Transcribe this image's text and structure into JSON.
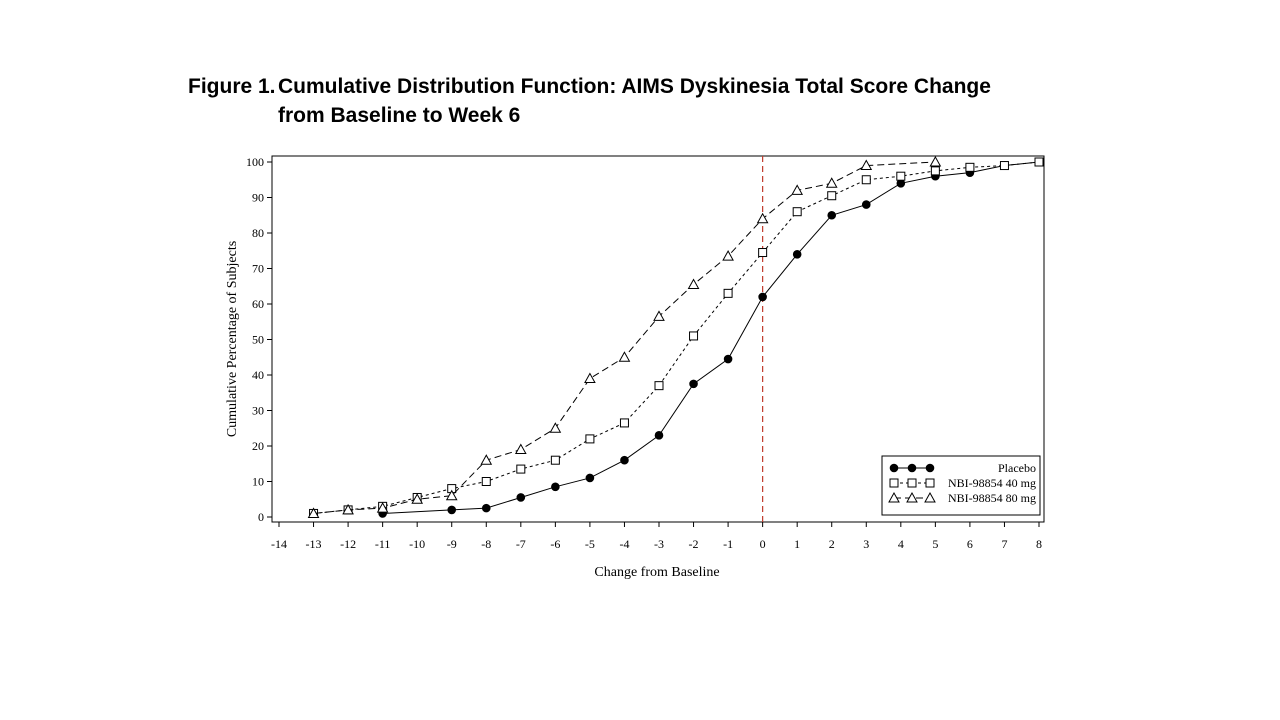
{
  "figure": {
    "number": "Figure 1.",
    "title_line1": "Cumulative Distribution Function: AIMS Dyskinesia Total Score Change",
    "title_line2": "from Baseline to Week 6"
  },
  "chart_data": {
    "type": "line",
    "xlabel": "Change from Baseline",
    "ylabel": "Cumulative Percentage of Subjects",
    "xlim": [
      -14,
      8
    ],
    "ylim": [
      0,
      100
    ],
    "x_ticks": [
      -14,
      -13,
      -12,
      -11,
      -10,
      -9,
      -8,
      -7,
      -6,
      -5,
      -4,
      -3,
      -2,
      -1,
      0,
      1,
      2,
      3,
      4,
      5,
      6,
      7,
      8
    ],
    "y_ticks": [
      0,
      10,
      20,
      30,
      40,
      50,
      60,
      70,
      80,
      90,
      100
    ],
    "grid": false,
    "legend_position": "bottom-right",
    "reference_line": {
      "x": 0,
      "color": "#c0392b",
      "style": "dashed"
    },
    "series": [
      {
        "name": "Placebo",
        "marker": "filled-circle",
        "line_style": "solid",
        "x": [
          -11,
          -9,
          -8,
          -7,
          -6,
          -5,
          -4,
          -3,
          -2,
          -1,
          0,
          1,
          2,
          3,
          4,
          5,
          6,
          7,
          8
        ],
        "y": [
          1,
          2,
          2.5,
          5.5,
          8.5,
          11,
          16,
          23,
          37.5,
          44.5,
          62,
          74,
          85,
          88,
          94,
          96,
          97,
          99,
          100
        ]
      },
      {
        "name": "NBI-98854 40 mg",
        "marker": "open-square",
        "line_style": "short-dash",
        "x": [
          -13,
          -12,
          -11,
          -10,
          -9,
          -8,
          -7,
          -6,
          -5,
          -4,
          -3,
          -2,
          -1,
          0,
          1,
          2,
          3,
          4,
          5,
          6,
          7,
          8
        ],
        "y": [
          1,
          2,
          3,
          5.5,
          8,
          10,
          13.5,
          16,
          22,
          26.5,
          37,
          51,
          63,
          74.5,
          86,
          90.5,
          95,
          96,
          97.5,
          98.5,
          99,
          100
        ]
      },
      {
        "name": "NBI-98854 80 mg",
        "marker": "open-triangle",
        "line_style": "long-dash",
        "x": [
          -13,
          -12,
          -11,
          -10,
          -9,
          -8,
          -7,
          -6,
          -5,
          -4,
          -3,
          -2,
          -1,
          0,
          1,
          2,
          3,
          5
        ],
        "y": [
          1,
          2,
          2.5,
          5,
          6,
          16,
          19,
          25,
          39,
          45,
          56.5,
          65.5,
          73.5,
          84,
          92,
          94,
          99,
          100
        ]
      }
    ]
  }
}
